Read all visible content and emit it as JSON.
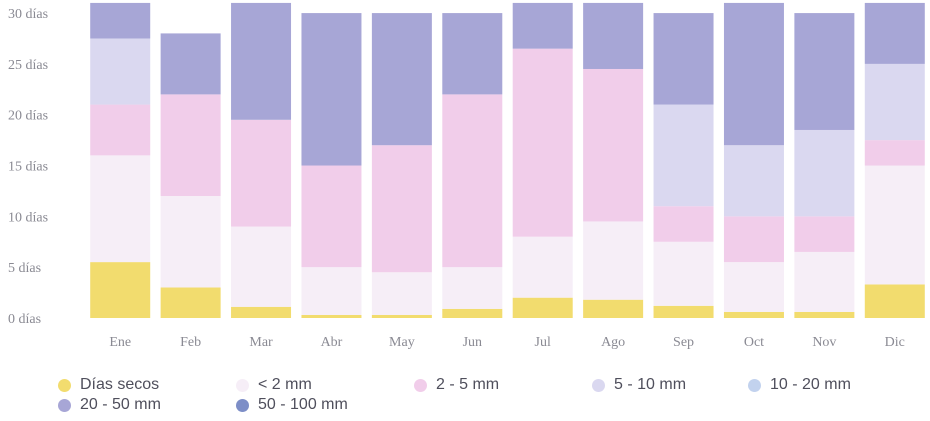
{
  "chart_data": {
    "type": "bar",
    "stacked": true,
    "categories": [
      "Ene",
      "Feb",
      "Mar",
      "Abr",
      "May",
      "Jun",
      "Jul",
      "Ago",
      "Sep",
      "Oct",
      "Nov",
      "Dic"
    ],
    "y_ticks": [
      "0 días",
      "5 días",
      "10 días",
      "15 días",
      "20 días",
      "25 días",
      "30 días"
    ],
    "ylim": [
      0,
      30.5
    ],
    "grid": false,
    "legend_position": "bottom",
    "series": [
      {
        "name": "Días secos",
        "color": "#f2dc6e",
        "values": [
          5.5,
          3.0,
          1.1,
          0.3,
          0.3,
          0.9,
          2.0,
          1.8,
          1.2,
          0.6,
          0.6,
          3.3
        ]
      },
      {
        "name": "< 2 mm",
        "color": "#f6eef7",
        "values": [
          10.5,
          9.0,
          7.9,
          4.7,
          4.2,
          4.1,
          6.0,
          7.7,
          6.3,
          4.9,
          5.9,
          11.7
        ]
      },
      {
        "name": "2 - 5 mm",
        "color": "#f1cdea",
        "values": [
          5.0,
          10.0,
          10.5,
          10.0,
          12.5,
          17.0,
          18.5,
          15.0,
          3.5,
          4.5,
          3.5,
          2.5
        ]
      },
      {
        "name": "5 - 10 mm",
        "color": "#dad8f0",
        "values": [
          6.5,
          0,
          0,
          0,
          0,
          0,
          0,
          0,
          10.0,
          7.0,
          8.5,
          7.5
        ]
      },
      {
        "name": "10 - 20 mm",
        "color": "#c2d2ee",
        "values": [
          0,
          0,
          0,
          0,
          0,
          0,
          0,
          0,
          0,
          0,
          0,
          0
        ]
      },
      {
        "name": "20 - 50 mm",
        "color": "#a7a6d6",
        "values": [
          3.5,
          6.0,
          11.5,
          15.0,
          13.0,
          8.0,
          4.5,
          6.5,
          9.0,
          14.0,
          11.5,
          6.0
        ]
      },
      {
        "name": "50 - 100 mm",
        "color": "#7d8ec7",
        "values": [
          0,
          0,
          0,
          0,
          0,
          0,
          0,
          0,
          0,
          0,
          0,
          0
        ]
      }
    ]
  }
}
